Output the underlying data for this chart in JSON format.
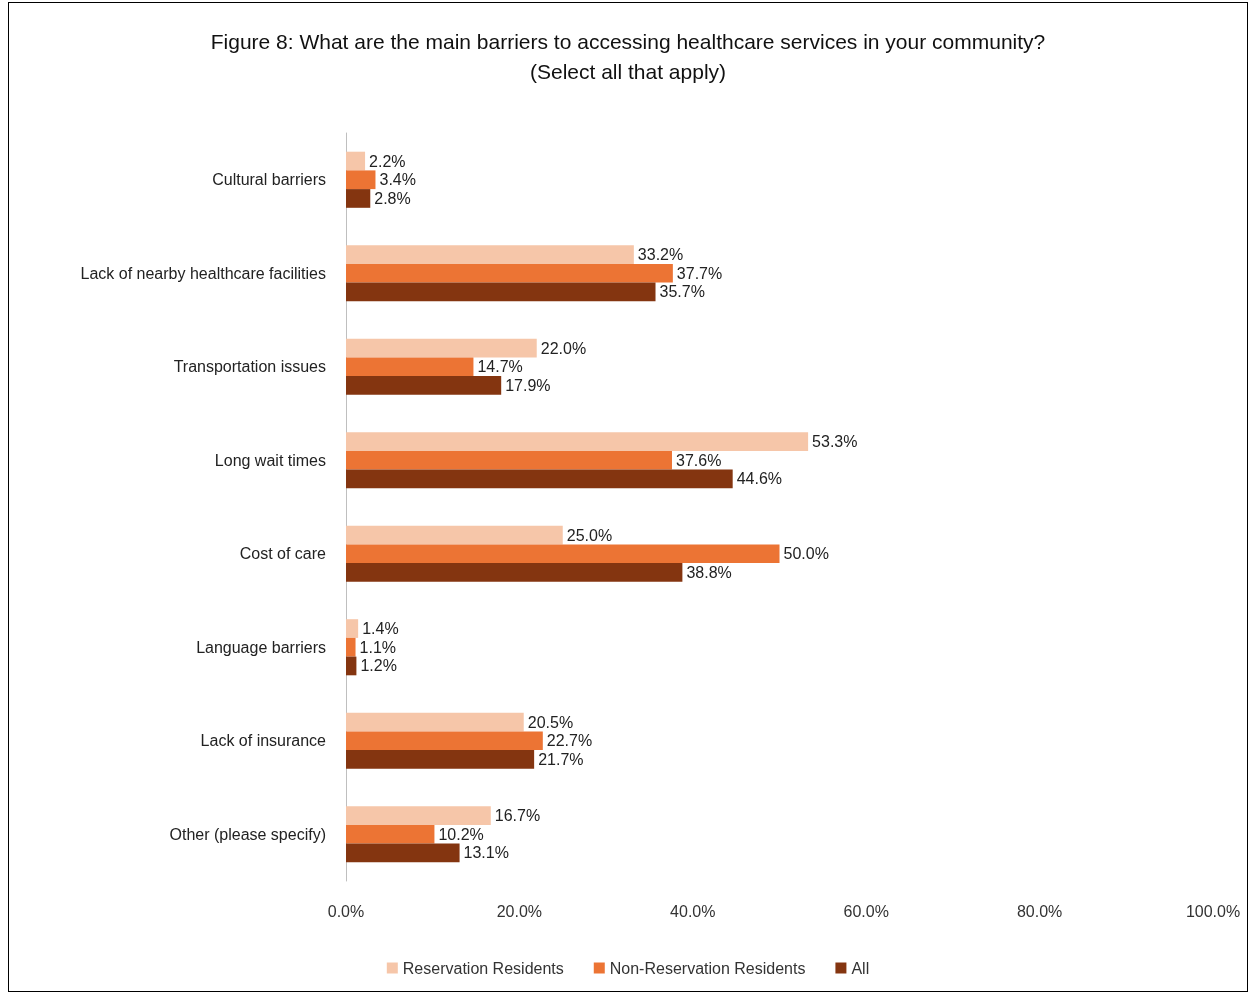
{
  "chart_data": {
    "type": "bar",
    "orientation": "horizontal",
    "title": "Figure 8: What are the main barriers to accessing healthcare services in your community?\n(Select all that apply)",
    "categories": [
      "Cultural barriers",
      "Lack of nearby healthcare facilities",
      "Transportation issues",
      "Long wait times",
      "Cost of care",
      "Language barriers",
      "Lack of insurance",
      "Other (please specify)"
    ],
    "series": [
      {
        "name": "Reservation Residents",
        "color": "#f6c6a9",
        "values": [
          2.2,
          33.2,
          22.0,
          53.3,
          25.0,
          1.4,
          20.5,
          16.7
        ],
        "value_labels": [
          "2.2%",
          "33.2%",
          "22.0%",
          "53.3%",
          "25.0%",
          "1.4%",
          "20.5%",
          "16.7%"
        ]
      },
      {
        "name": "Non-Reservation Residents",
        "color": "#ec7434",
        "values": [
          3.4,
          37.7,
          14.7,
          37.6,
          50.0,
          1.1,
          22.7,
          10.2
        ],
        "value_labels": [
          "3.4%",
          "37.7%",
          "14.7%",
          "37.6%",
          "50.0%",
          "1.1%",
          "22.7%",
          "10.2%"
        ]
      },
      {
        "name": "All",
        "color": "#843510",
        "values": [
          2.8,
          35.7,
          17.9,
          44.6,
          38.8,
          1.2,
          21.7,
          13.1
        ],
        "value_labels": [
          "2.8%",
          "35.7%",
          "17.9%",
          "44.6%",
          "38.8%",
          "1.2%",
          "21.7%",
          "13.1%"
        ]
      }
    ],
    "xlim": [
      0,
      100
    ],
    "xticks": [
      {
        "value": 0,
        "label": "0.0%"
      },
      {
        "value": 20,
        "label": "20.0%"
      },
      {
        "value": 40,
        "label": "40.0%"
      },
      {
        "value": 60,
        "label": "60.0%"
      },
      {
        "value": 80,
        "label": "80.0%"
      },
      {
        "value": 100,
        "label": "100.0%"
      }
    ],
    "grid": false,
    "legend": "bottom"
  }
}
